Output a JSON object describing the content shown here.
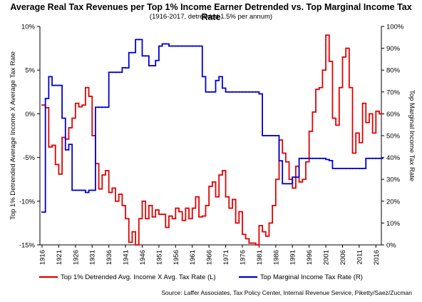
{
  "chart_data": {
    "type": "line",
    "title": "Average Real Tax Revenues per Top 1% Income Earner Detrended vs. Top Marginal Income Tax Rate",
    "subtitle": "(1916-2017, detrended 1.5% per annum)",
    "ylabel_left": "Top 1% Detrended Average Income X Average Tax Rate",
    "ylabel_right": "Top Marginal Income Tax Rate",
    "xlabel": "",
    "x_range": [
      1916,
      2017
    ],
    "xticks": [
      1916,
      1921,
      1926,
      1931,
      1936,
      1941,
      1946,
      1951,
      1956,
      1961,
      1966,
      1971,
      1976,
      1981,
      1986,
      1991,
      1996,
      2001,
      2006,
      2011,
      2016
    ],
    "ylim_left": [
      -15,
      10
    ],
    "yticks_left": [
      10,
      5,
      0,
      -5,
      -10,
      -15
    ],
    "ytick_labels_left": [
      "10%",
      "5%",
      "0%",
      "-5%",
      "-10%",
      "-15%"
    ],
    "ylim_right": [
      0,
      100
    ],
    "yticks_right": [
      100,
      90,
      80,
      70,
      60,
      50,
      40,
      30,
      20,
      10,
      0
    ],
    "ytick_labels_right": [
      "100%",
      "90%",
      "80%",
      "70%",
      "60%",
      "50%",
      "40%",
      "30%",
      "20%",
      "10%",
      "0%"
    ],
    "grid": false,
    "legend_position": "bottom",
    "source": "Source: Laffer Associates, Tax Policy Center, Internal Revenue Service, Piketty/Saez/Zucman",
    "series": [
      {
        "name": "Top 1% Detrended Avg. Income X Avg. Tax Rate (L)",
        "axis": "left",
        "color": "#e00000",
        "step": true,
        "x": [
          1916,
          1917,
          1918,
          1919,
          1920,
          1921,
          1922,
          1923,
          1924,
          1925,
          1926,
          1927,
          1928,
          1929,
          1930,
          1931,
          1932,
          1933,
          1934,
          1935,
          1936,
          1937,
          1938,
          1939,
          1940,
          1941,
          1942,
          1943,
          1944,
          1945,
          1946,
          1947,
          1948,
          1949,
          1950,
          1951,
          1952,
          1953,
          1954,
          1955,
          1956,
          1957,
          1958,
          1959,
          1960,
          1961,
          1962,
          1963,
          1964,
          1965,
          1966,
          1967,
          1968,
          1969,
          1970,
          1971,
          1972,
          1973,
          1974,
          1975,
          1976,
          1977,
          1978,
          1979,
          1980,
          1981,
          1982,
          1983,
          1984,
          1985,
          1986,
          1987,
          1988,
          1989,
          1990,
          1991,
          1992,
          1993,
          1994,
          1995,
          1996,
          1997,
          1998,
          1999,
          2000,
          2001,
          2002,
          2003,
          2004,
          2005,
          2006,
          2007,
          2008,
          2009,
          2010,
          2011,
          2012,
          2013,
          2014,
          2015,
          2016,
          2017
        ],
        "values": [
          1,
          0.7,
          -3.8,
          -3.6,
          -5.8,
          -6.9,
          -2.7,
          -2.9,
          -1.6,
          -0.5,
          1.2,
          0.8,
          1,
          3,
          2,
          -2.5,
          -5.7,
          -8.6,
          -7,
          -6.5,
          -9,
          -8.5,
          -10,
          -9.2,
          -10.5,
          -12,
          -14.7,
          -13.5,
          -15,
          -12,
          -10,
          -12,
          -10.5,
          -11.8,
          -11,
          -11.5,
          -11.5,
          -13,
          -11.7,
          -12,
          -10.8,
          -11.2,
          -12.2,
          -10.8,
          -12,
          -10.8,
          -9.5,
          -11.8,
          -11.7,
          -10.5,
          -8.3,
          -7.8,
          -9.5,
          -7,
          -6.5,
          -9.5,
          -10.8,
          -9.8,
          -12.5,
          -11.2,
          -13.8,
          -14.3,
          -14.8,
          -14.8,
          -15,
          -12.8,
          -13.5,
          -14,
          -12.5,
          -10.5,
          -7.5,
          -3,
          -4.5,
          -5.5,
          -7.5,
          -8.5,
          -6,
          -7.8,
          -7.5,
          -5.5,
          -2,
          0.2,
          2.8,
          3,
          5,
          9,
          6,
          -0.5,
          -1.3,
          3,
          6.5,
          7.5,
          3,
          -4.5,
          -2.2,
          -3.3,
          1.2,
          -1,
          0,
          -2.2,
          0.3,
          0
        ]
      },
      {
        "name": "Top Marginal Income Tax Rate (R)",
        "axis": "right",
        "color": "#0000d0",
        "step": true,
        "x": [
          1916,
          1917,
          1918,
          1919,
          1920,
          1921,
          1922,
          1923,
          1924,
          1925,
          1926,
          1927,
          1928,
          1929,
          1930,
          1931,
          1932,
          1933,
          1934,
          1935,
          1936,
          1937,
          1938,
          1939,
          1940,
          1941,
          1942,
          1943,
          1944,
          1945,
          1946,
          1947,
          1948,
          1949,
          1950,
          1951,
          1952,
          1953,
          1954,
          1955,
          1956,
          1957,
          1958,
          1959,
          1960,
          1961,
          1962,
          1963,
          1964,
          1965,
          1966,
          1967,
          1968,
          1969,
          1970,
          1971,
          1972,
          1973,
          1974,
          1975,
          1976,
          1977,
          1978,
          1979,
          1980,
          1981,
          1982,
          1983,
          1984,
          1985,
          1986,
          1987,
          1988,
          1989,
          1990,
          1991,
          1992,
          1993,
          1994,
          1995,
          1996,
          1997,
          1998,
          1999,
          2000,
          2001,
          2002,
          2003,
          2004,
          2005,
          2006,
          2007,
          2008,
          2009,
          2010,
          2011,
          2012,
          2013,
          2014,
          2015,
          2016,
          2017
        ],
        "values": [
          15,
          67,
          77,
          73,
          73,
          73,
          58,
          43.5,
          46,
          25,
          25,
          25,
          25,
          24,
          25,
          25,
          63,
          63,
          63,
          63,
          79,
          79,
          79,
          79,
          81.1,
          81,
          88,
          88,
          94,
          94,
          86.5,
          86.5,
          82,
          82,
          84.4,
          91,
          92,
          92,
          91,
          91,
          91,
          91,
          91,
          91,
          91,
          91,
          91,
          91,
          77,
          70,
          70,
          70,
          75.25,
          77,
          71.75,
          70,
          70,
          70,
          70,
          70,
          70,
          70,
          70,
          70,
          70,
          69.13,
          50,
          50,
          50,
          50,
          50,
          38.5,
          28,
          28,
          28,
          31,
          31,
          39.6,
          39.6,
          39.6,
          39.6,
          39.6,
          39.6,
          39.6,
          39.6,
          39.1,
          38.6,
          35,
          35,
          35,
          35,
          35,
          35,
          35,
          35,
          35,
          35,
          39.6,
          39.6,
          39.6,
          39.6,
          39.6
        ]
      }
    ]
  }
}
